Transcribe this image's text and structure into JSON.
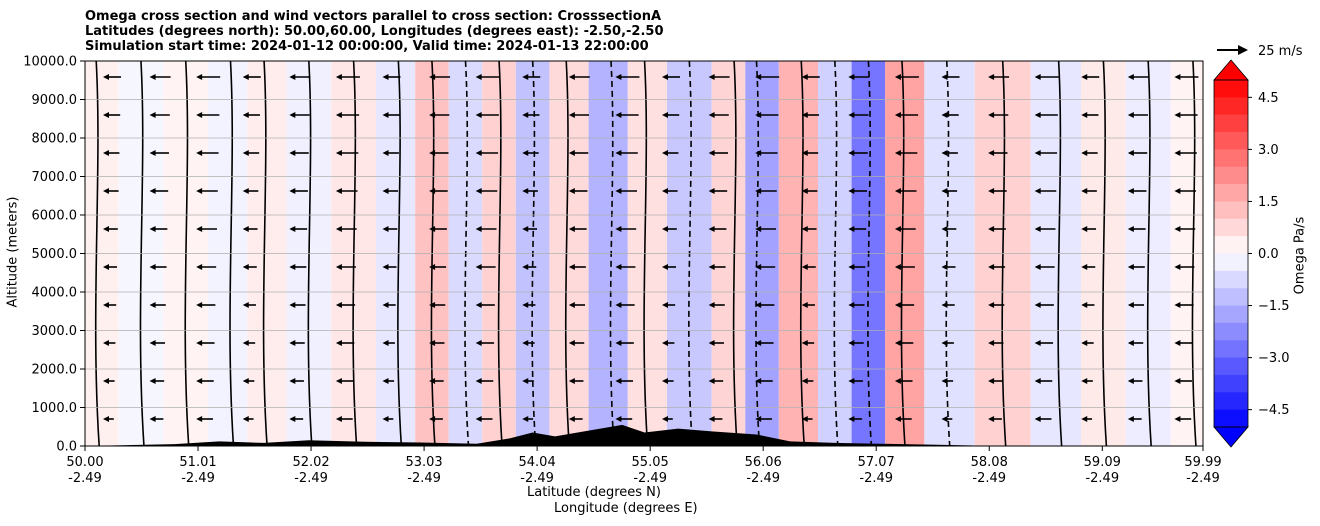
{
  "chart_data": {
    "type": "heatmap",
    "title_lines": [
      "Omega cross section and wind vectors parallel to cross section: CrosssectionA",
      "Latitudes (degrees north): 50.00,60.00, Longitudes (degrees east): -2.50,-2.50",
      "Simulation start time: 2024-01-12 00:00:00, Valid time: 2024-01-13 22:00:00"
    ],
    "ylabel": "Altitude (meters)",
    "xlabel_lat": "Latitude (degrees N)",
    "xlabel_lon": "Longitude (degrees E)",
    "ylim": [
      0,
      10000
    ],
    "y_ticks": [
      "0.0",
      "1000.0",
      "2000.0",
      "3000.0",
      "4000.0",
      "5000.0",
      "6000.0",
      "7000.0",
      "8000.0",
      "9000.0",
      "10000.0"
    ],
    "xlim": [
      50.0,
      59.99
    ],
    "x_ticks": [
      {
        "lat": "50.00",
        "lon": "-2.49"
      },
      {
        "lat": "51.01",
        "lon": "-2.49"
      },
      {
        "lat": "52.02",
        "lon": "-2.49"
      },
      {
        "lat": "53.03",
        "lon": "-2.49"
      },
      {
        "lat": "54.04",
        "lon": "-2.49"
      },
      {
        "lat": "55.05",
        "lon": "-2.49"
      },
      {
        "lat": "56.06",
        "lon": "-2.49"
      },
      {
        "lat": "57.07",
        "lon": "-2.49"
      },
      {
        "lat": "58.08",
        "lon": "-2.49"
      },
      {
        "lat": "59.09",
        "lon": "-2.49"
      },
      {
        "lat": "59.99",
        "lon": "-2.49"
      }
    ],
    "grid": true,
    "colorbar": {
      "label": "Omega Pa/s",
      "range": [
        -5.0,
        5.0
      ],
      "ticks": [
        "4.5",
        "3.0",
        "1.5",
        "0.0",
        "−1.5",
        "−3.0",
        "−4.5"
      ],
      "extend": "both",
      "cmap": "bwr"
    },
    "wind_reference": {
      "label": "25 m/s",
      "speed": 25
    },
    "contour_levels": [
      "-2.0",
      "-1.0",
      "0.0",
      "1.0",
      "2.0"
    ],
    "omega_bands": [
      {
        "lat": 50.1,
        "value": 0.5
      },
      {
        "lat": 50.5,
        "value": -0.3
      },
      {
        "lat": 50.9,
        "value": 0.4
      },
      {
        "lat": 51.3,
        "value": -0.4
      },
      {
        "lat": 51.6,
        "value": 0.6
      },
      {
        "lat": 52.0,
        "value": -0.5
      },
      {
        "lat": 52.4,
        "value": 0.8
      },
      {
        "lat": 52.8,
        "value": -0.8
      },
      {
        "lat": 53.1,
        "value": 2.0
      },
      {
        "lat": 53.4,
        "value": -1.2
      },
      {
        "lat": 53.7,
        "value": 1.5
      },
      {
        "lat": 54.0,
        "value": -2.0
      },
      {
        "lat": 54.3,
        "value": 1.2
      },
      {
        "lat": 54.7,
        "value": -2.5
      },
      {
        "lat": 55.0,
        "value": 1.0
      },
      {
        "lat": 55.4,
        "value": -1.8
      },
      {
        "lat": 55.8,
        "value": 1.4
      },
      {
        "lat": 56.0,
        "value": -3.0
      },
      {
        "lat": 56.4,
        "value": 2.5
      },
      {
        "lat": 56.7,
        "value": -1.5
      },
      {
        "lat": 57.0,
        "value": -4.5
      },
      {
        "lat": 57.3,
        "value": 3.0
      },
      {
        "lat": 57.7,
        "value": -1.0
      },
      {
        "lat": 58.2,
        "value": 1.5
      },
      {
        "lat": 58.7,
        "value": -0.8
      },
      {
        "lat": 59.1,
        "value": 0.7
      },
      {
        "lat": 59.5,
        "value": -0.6
      },
      {
        "lat": 59.9,
        "value": 0.4
      }
    ],
    "terrain": [
      {
        "lat": 50.0,
        "z": 0
      },
      {
        "lat": 50.8,
        "z": 50
      },
      {
        "lat": 51.2,
        "z": 120
      },
      {
        "lat": 51.6,
        "z": 80
      },
      {
        "lat": 52.0,
        "z": 150
      },
      {
        "lat": 52.5,
        "z": 110
      },
      {
        "lat": 53.0,
        "z": 90
      },
      {
        "lat": 53.5,
        "z": 60
      },
      {
        "lat": 53.8,
        "z": 200
      },
      {
        "lat": 54.0,
        "z": 350
      },
      {
        "lat": 54.2,
        "z": 250
      },
      {
        "lat": 54.5,
        "z": 400
      },
      {
        "lat": 54.8,
        "z": 550
      },
      {
        "lat": 55.0,
        "z": 350
      },
      {
        "lat": 55.3,
        "z": 450
      },
      {
        "lat": 55.6,
        "z": 380
      },
      {
        "lat": 56.0,
        "z": 300
      },
      {
        "lat": 56.3,
        "z": 120
      },
      {
        "lat": 56.7,
        "z": 80
      },
      {
        "lat": 57.1,
        "z": 60
      },
      {
        "lat": 57.5,
        "z": 40
      },
      {
        "lat": 58.0,
        "z": 10
      },
      {
        "lat": 59.0,
        "z": 0
      },
      {
        "lat": 59.99,
        "z": 0
      }
    ]
  }
}
